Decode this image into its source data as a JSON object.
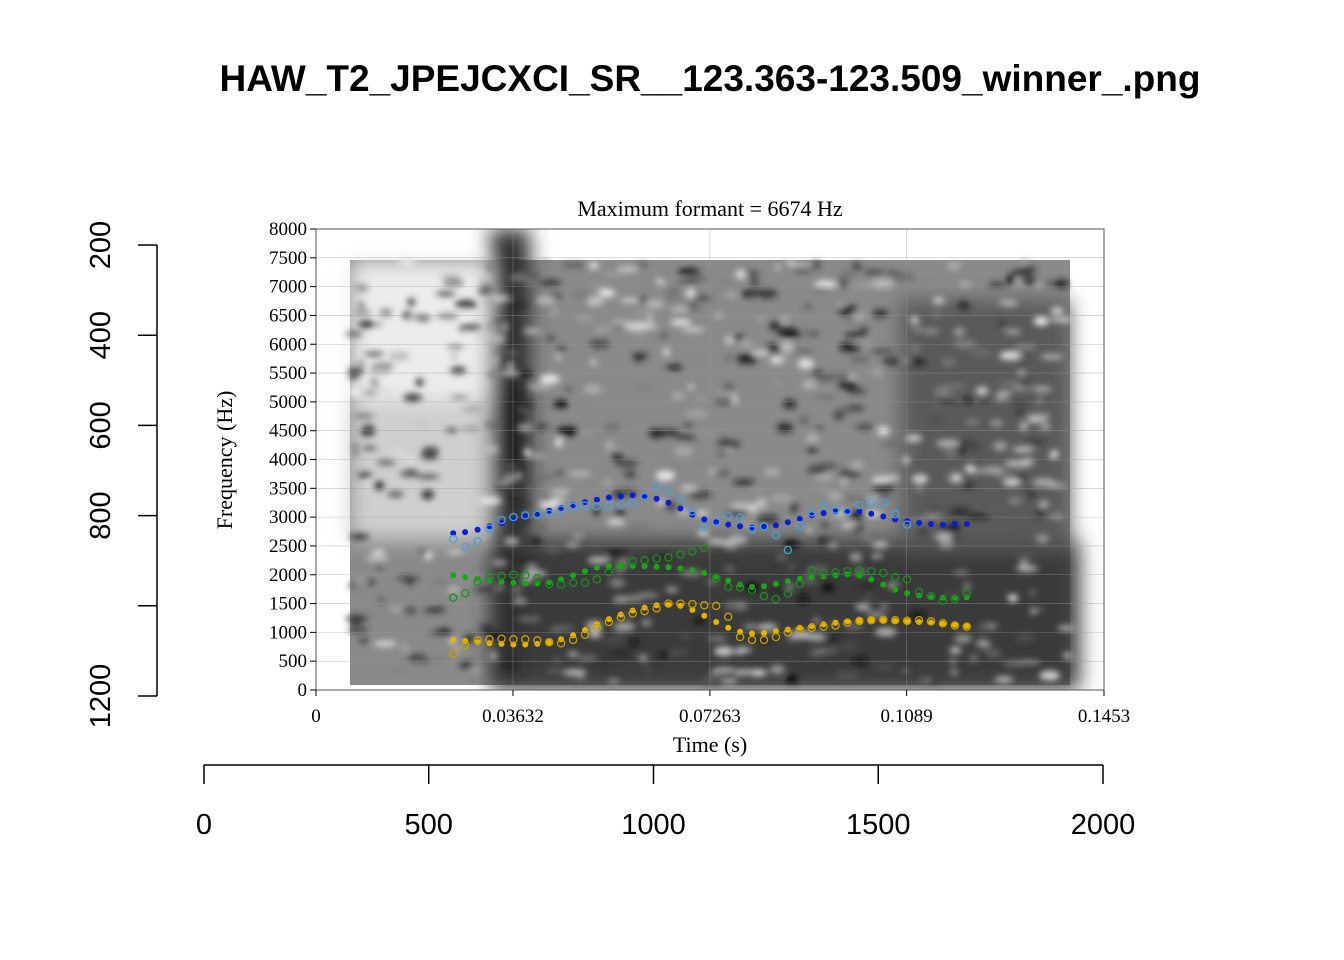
{
  "page_title": "HAW_T2_JPEJCXCI_SR__123.363-123.509_winner_.png",
  "chart_data": {
    "type": "scatter",
    "title": "Maximum formant = 6674 Hz",
    "xlabel": "Time (s)",
    "ylabel": "Frequency (Hz)",
    "xlim": [
      0,
      0.1453
    ],
    "ylim": [
      0,
      8000
    ],
    "x_ticks": [
      "0",
      "0.03632",
      "0.07263",
      "0.1089",
      "0.1453"
    ],
    "y_ticks": [
      "0",
      "500",
      "1000",
      "1500",
      "2000",
      "2500",
      "3000",
      "3500",
      "4000",
      "4500",
      "5000",
      "5500",
      "6000",
      "6500",
      "7000",
      "7500",
      "8000"
    ],
    "grid": true,
    "background": "spectrogram (grayscale)",
    "outer_axes": {
      "bottom": {
        "range": [
          0,
          2000
        ],
        "ticks": [
          "0",
          "500",
          "1000",
          "1500",
          "2000"
        ]
      },
      "left": {
        "range": [
          200,
          1200
        ],
        "reversed": true,
        "ticks": [
          "200",
          "400",
          "600",
          "800",
          "1200"
        ]
      }
    },
    "series": [
      {
        "color": "#0a1fd0",
        "marker": "dot",
        "points": [
          [
            0.0253,
            2720
          ],
          [
            0.0275,
            2740
          ],
          [
            0.0298,
            2780
          ],
          [
            0.032,
            2840
          ],
          [
            0.0342,
            2900
          ],
          [
            0.0364,
            2960
          ],
          [
            0.0386,
            3010
          ],
          [
            0.0408,
            3060
          ],
          [
            0.043,
            3110
          ],
          [
            0.0452,
            3160
          ],
          [
            0.0474,
            3210
          ],
          [
            0.0496,
            3260
          ],
          [
            0.0518,
            3300
          ],
          [
            0.054,
            3340
          ],
          [
            0.0562,
            3360
          ],
          [
            0.0584,
            3380
          ],
          [
            0.0606,
            3370
          ],
          [
            0.0628,
            3320
          ],
          [
            0.065,
            3250
          ],
          [
            0.0672,
            3150
          ],
          [
            0.0694,
            3040
          ],
          [
            0.0716,
            2960
          ],
          [
            0.0738,
            2910
          ],
          [
            0.076,
            2870
          ],
          [
            0.0782,
            2840
          ],
          [
            0.0804,
            2820
          ],
          [
            0.0826,
            2830
          ],
          [
            0.0848,
            2860
          ],
          [
            0.087,
            2910
          ],
          [
            0.0892,
            2970
          ],
          [
            0.0914,
            3030
          ],
          [
            0.0936,
            3070
          ],
          [
            0.0958,
            3100
          ],
          [
            0.098,
            3110
          ],
          [
            0.1002,
            3100
          ],
          [
            0.1024,
            3060
          ],
          [
            0.1046,
            3010
          ],
          [
            0.1068,
            2960
          ],
          [
            0.109,
            2930
          ],
          [
            0.1112,
            2900
          ],
          [
            0.1134,
            2880
          ],
          [
            0.1156,
            2870
          ],
          [
            0.1178,
            2880
          ],
          [
            0.12,
            2880
          ]
        ]
      },
      {
        "color": "#4aa0d8",
        "marker": "circle",
        "points": [
          [
            0.0253,
            2620
          ],
          [
            0.0275,
            2480
          ],
          [
            0.0298,
            2580
          ],
          [
            0.032,
            2800
          ],
          [
            0.0342,
            2950
          ],
          [
            0.0364,
            3000
          ],
          [
            0.0386,
            3030
          ],
          [
            0.0408,
            3040
          ],
          [
            0.043,
            3060
          ],
          [
            0.0452,
            3130
          ],
          [
            0.0474,
            3180
          ],
          [
            0.0496,
            3200
          ],
          [
            0.0518,
            3190
          ],
          [
            0.054,
            3190
          ],
          [
            0.0562,
            3210
          ],
          [
            0.0584,
            3250
          ],
          [
            0.0606,
            3350
          ],
          [
            0.0628,
            3520
          ],
          [
            0.065,
            3460
          ],
          [
            0.0672,
            3310
          ],
          [
            0.0694,
            3100
          ],
          [
            0.0716,
            2830
          ],
          [
            0.0738,
            2920
          ],
          [
            0.076,
            3020
          ],
          [
            0.0782,
            2990
          ],
          [
            0.0804,
            2780
          ],
          [
            0.0826,
            2840
          ],
          [
            0.0848,
            2690
          ],
          [
            0.087,
            2430
          ],
          [
            0.0892,
            2860
          ],
          [
            0.0914,
            3080
          ],
          [
            0.0936,
            3200
          ],
          [
            0.0958,
            3130
          ],
          [
            0.098,
            3090
          ],
          [
            0.1002,
            3210
          ],
          [
            0.1024,
            3250
          ],
          [
            0.1046,
            3250
          ],
          [
            0.1068,
            3050
          ],
          [
            0.109,
            2870
          ]
        ]
      },
      {
        "color": "#1aa51a",
        "marker": "dot",
        "points": [
          [
            0.0253,
            1990
          ],
          [
            0.0275,
            1960
          ],
          [
            0.0298,
            1930
          ],
          [
            0.032,
            1900
          ],
          [
            0.0342,
            1880
          ],
          [
            0.0364,
            1860
          ],
          [
            0.0386,
            1850
          ],
          [
            0.0408,
            1850
          ],
          [
            0.043,
            1870
          ],
          [
            0.0452,
            1920
          ],
          [
            0.0474,
            1990
          ],
          [
            0.0496,
            2060
          ],
          [
            0.0518,
            2120
          ],
          [
            0.054,
            2150
          ],
          [
            0.0562,
            2160
          ],
          [
            0.0584,
            2150
          ],
          [
            0.0606,
            2150
          ],
          [
            0.0628,
            2140
          ],
          [
            0.065,
            2130
          ],
          [
            0.0672,
            2110
          ],
          [
            0.0694,
            2080
          ],
          [
            0.0716,
            2030
          ],
          [
            0.0738,
            1970
          ],
          [
            0.076,
            1900
          ],
          [
            0.0782,
            1830
          ],
          [
            0.0804,
            1790
          ],
          [
            0.0826,
            1800
          ],
          [
            0.0848,
            1840
          ],
          [
            0.087,
            1890
          ],
          [
            0.0892,
            1930
          ],
          [
            0.0914,
            1960
          ],
          [
            0.0936,
            1970
          ],
          [
            0.0958,
            1990
          ],
          [
            0.098,
            2010
          ],
          [
            0.1002,
            1990
          ],
          [
            0.1024,
            1920
          ],
          [
            0.1046,
            1830
          ],
          [
            0.1068,
            1740
          ],
          [
            0.109,
            1680
          ],
          [
            0.1112,
            1640
          ],
          [
            0.1134,
            1610
          ],
          [
            0.1156,
            1600
          ],
          [
            0.1178,
            1600
          ],
          [
            0.12,
            1610
          ]
        ]
      },
      {
        "color": "#1f8d1f",
        "marker": "circle",
        "points": [
          [
            0.0253,
            1600
          ],
          [
            0.0275,
            1680
          ],
          [
            0.0298,
            1880
          ],
          [
            0.032,
            1970
          ],
          [
            0.0342,
            1980
          ],
          [
            0.0364,
            2000
          ],
          [
            0.0386,
            1990
          ],
          [
            0.0408,
            1940
          ],
          [
            0.043,
            1840
          ],
          [
            0.0452,
            1830
          ],
          [
            0.0474,
            1860
          ],
          [
            0.0496,
            1860
          ],
          [
            0.0518,
            1920
          ],
          [
            0.054,
            2040
          ],
          [
            0.0562,
            2150
          ],
          [
            0.0584,
            2230
          ],
          [
            0.0606,
            2250
          ],
          [
            0.0628,
            2280
          ],
          [
            0.065,
            2300
          ],
          [
            0.0672,
            2350
          ],
          [
            0.0694,
            2400
          ],
          [
            0.0716,
            2470
          ],
          [
            0.0738,
            1940
          ],
          [
            0.076,
            1790
          ],
          [
            0.0782,
            1780
          ],
          [
            0.0804,
            1730
          ],
          [
            0.0826,
            1630
          ],
          [
            0.0848,
            1580
          ],
          [
            0.087,
            1670
          ],
          [
            0.0892,
            1840
          ],
          [
            0.0914,
            2080
          ],
          [
            0.0936,
            2030
          ],
          [
            0.0958,
            2040
          ],
          [
            0.098,
            2060
          ],
          [
            0.1002,
            2070
          ],
          [
            0.1024,
            2060
          ],
          [
            0.1046,
            2030
          ],
          [
            0.1068,
            1960
          ],
          [
            0.109,
            1920
          ],
          [
            0.1112,
            1700
          ],
          [
            0.1134,
            1630
          ],
          [
            0.1156,
            1550
          ],
          [
            0.1178,
            1580
          ],
          [
            0.12,
            1690
          ]
        ]
      },
      {
        "color": "#e8b400",
        "marker": "dot",
        "points": [
          [
            0.0253,
            870
          ],
          [
            0.0275,
            850
          ],
          [
            0.0298,
            830
          ],
          [
            0.032,
            810
          ],
          [
            0.0342,
            800
          ],
          [
            0.0364,
            790
          ],
          [
            0.0386,
            790
          ],
          [
            0.0408,
            800
          ],
          [
            0.043,
            830
          ],
          [
            0.0452,
            880
          ],
          [
            0.0474,
            950
          ],
          [
            0.0496,
            1040
          ],
          [
            0.0518,
            1140
          ],
          [
            0.054,
            1230
          ],
          [
            0.0562,
            1310
          ],
          [
            0.0584,
            1380
          ],
          [
            0.0606,
            1430
          ],
          [
            0.0628,
            1470
          ],
          [
            0.065,
            1480
          ],
          [
            0.0672,
            1460
          ],
          [
            0.0694,
            1390
          ],
          [
            0.0716,
            1290
          ],
          [
            0.0738,
            1180
          ],
          [
            0.076,
            1080
          ],
          [
            0.0782,
            1010
          ],
          [
            0.0804,
            980
          ],
          [
            0.0826,
            990
          ],
          [
            0.0848,
            1020
          ],
          [
            0.087,
            1050
          ],
          [
            0.0892,
            1080
          ],
          [
            0.0914,
            1110
          ],
          [
            0.0936,
            1140
          ],
          [
            0.0958,
            1170
          ],
          [
            0.098,
            1190
          ],
          [
            0.1002,
            1200
          ],
          [
            0.1024,
            1210
          ],
          [
            0.1046,
            1210
          ],
          [
            0.1068,
            1200
          ],
          [
            0.109,
            1190
          ],
          [
            0.1112,
            1180
          ],
          [
            0.1134,
            1170
          ],
          [
            0.1156,
            1150
          ],
          [
            0.1178,
            1130
          ],
          [
            0.12,
            1110
          ]
        ]
      },
      {
        "color": "#c9a000",
        "marker": "circle",
        "points": [
          [
            0.0253,
            630
          ],
          [
            0.0275,
            780
          ],
          [
            0.0298,
            860
          ],
          [
            0.032,
            880
          ],
          [
            0.0342,
            890
          ],
          [
            0.0364,
            880
          ],
          [
            0.0386,
            880
          ],
          [
            0.0408,
            860
          ],
          [
            0.043,
            830
          ],
          [
            0.0452,
            810
          ],
          [
            0.0474,
            870
          ],
          [
            0.0496,
            960
          ],
          [
            0.0518,
            1080
          ],
          [
            0.054,
            1180
          ],
          [
            0.0562,
            1260
          ],
          [
            0.0584,
            1330
          ],
          [
            0.0606,
            1370
          ],
          [
            0.0628,
            1420
          ],
          [
            0.065,
            1500
          ],
          [
            0.0672,
            1500
          ],
          [
            0.0694,
            1490
          ],
          [
            0.0716,
            1470
          ],
          [
            0.0738,
            1460
          ],
          [
            0.076,
            1270
          ],
          [
            0.0782,
            920
          ],
          [
            0.0804,
            870
          ],
          [
            0.0826,
            870
          ],
          [
            0.0848,
            920
          ],
          [
            0.087,
            1000
          ],
          [
            0.0892,
            1050
          ],
          [
            0.0914,
            1080
          ],
          [
            0.0936,
            1100
          ],
          [
            0.0958,
            1120
          ],
          [
            0.098,
            1170
          ],
          [
            0.1002,
            1200
          ],
          [
            0.1024,
            1210
          ],
          [
            0.1046,
            1220
          ],
          [
            0.1068,
            1210
          ],
          [
            0.109,
            1200
          ],
          [
            0.1112,
            1210
          ],
          [
            0.1134,
            1190
          ],
          [
            0.1156,
            1160
          ],
          [
            0.1178,
            1120
          ],
          [
            0.12,
            1100
          ]
        ]
      }
    ]
  }
}
